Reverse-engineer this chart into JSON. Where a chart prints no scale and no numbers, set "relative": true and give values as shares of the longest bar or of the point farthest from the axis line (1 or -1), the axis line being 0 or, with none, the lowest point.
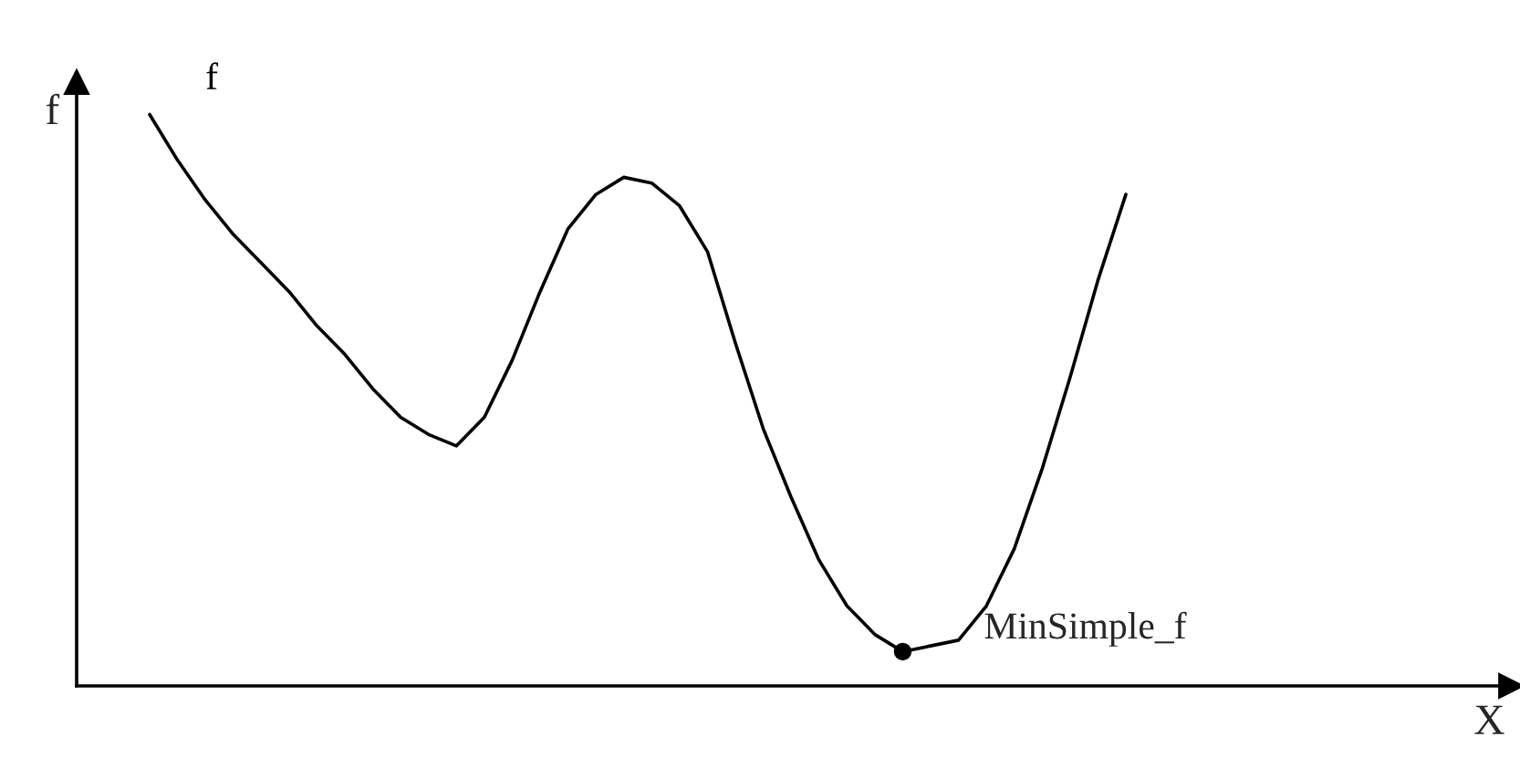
{
  "chart_data": {
    "type": "line",
    "relative": true,
    "ylabel": "f",
    "categories": [
      null,
      null,
      null,
      null,
      null,
      null,
      null,
      null,
      null,
      null,
      null,
      null,
      null,
      null,
      null,
      null,
      null,
      null,
      null,
      null,
      null,
      null,
      null,
      null,
      null,
      null,
      null,
      null,
      null,
      null,
      null,
      null,
      null,
      null,
      null,
      null
    ],
    "series": [
      {
        "name": "f",
        "color": "#000000",
        "values": [
          1,
          0.92,
          0.85,
          0.79,
          0.74,
          0.69,
          0.63,
          0.58,
          0.52,
          0.47,
          0.44,
          0.42,
          0.47,
          0.57,
          0.69,
          0.8,
          0.86,
          0.89,
          0.88,
          0.84,
          0.76,
          0.6,
          0.45,
          0.33,
          0.22,
          0.14,
          0.09,
          0.06,
          0.07,
          0.08,
          0.14,
          0.24,
          0.38,
          0.54,
          0.71,
          0.86
        ]
      }
    ],
    "annotations": [
      "MinSimple_f",
      "X"
    ],
    "legend": false
  }
}
